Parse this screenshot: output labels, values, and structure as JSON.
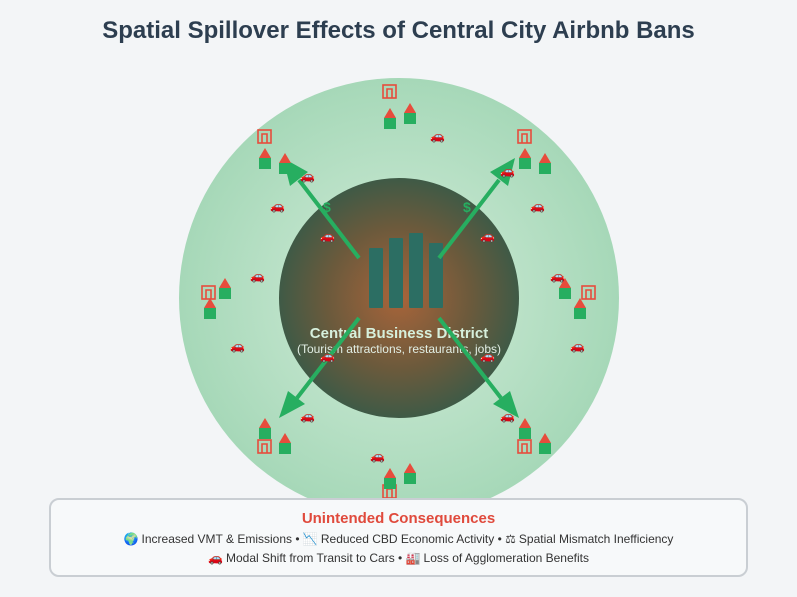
{
  "title": "Spatial Spillover Effects of Central City Airbnb Bans",
  "cbd": {
    "title": "Central Business District",
    "subtitle": "(Tourism attractions, restaurants, jobs)"
  },
  "dollar_symbol": "$",
  "colors": {
    "title": "#2d3e50",
    "ring": "#a8d8b9",
    "arrow": "#27ae60",
    "house_roof": "#e74c3c",
    "house_body": "#27ae60",
    "hotel": "#e74c3c",
    "consequences_title": "#e04a3c",
    "tower": "#2c6e63"
  },
  "icons": {
    "car": "car-icon",
    "house": "house-icon",
    "hotel": "hotel-icon"
  },
  "consequences": {
    "title": "Unintended Consequences",
    "line1": [
      {
        "icon": "globe-icon",
        "glyph": "🌍",
        "text": "Increased VMT & Emissions"
      },
      {
        "icon": "chart-down-icon",
        "glyph": "📉",
        "text": "Reduced CBD Economic Activity"
      },
      {
        "icon": "scale-icon",
        "glyph": "⚖",
        "text": "Spatial Mismatch Inefficiency"
      }
    ],
    "line2": [
      {
        "icon": "car-icon",
        "glyph": "🚗",
        "text": "Modal Shift from Transit to Cars"
      },
      {
        "icon": "factory-icon",
        "glyph": "🏭",
        "text": "Loss of Agglomeration Benefits"
      }
    ],
    "separator": "•"
  }
}
